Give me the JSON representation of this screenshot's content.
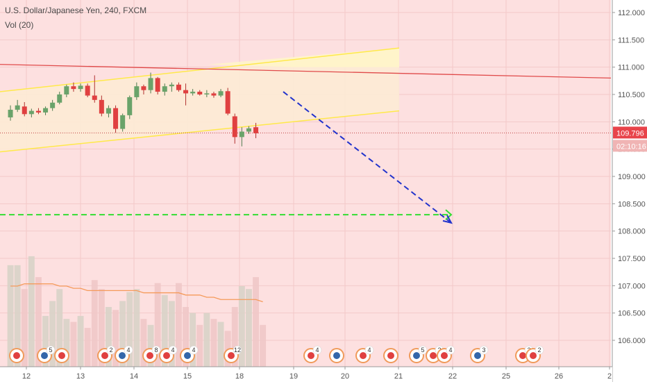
{
  "header": {
    "title": "U.S. Dollar/Japanese Yen, 240, FXCM",
    "indicator": "Vol (20)"
  },
  "colors": {
    "up": "#6aa36a",
    "down": "#e04040",
    "zone_fill": "#fde0e0",
    "channel_fill": "#fdebd5",
    "channel_line": "#ffe94a",
    "resistance_line": "#e04a4a",
    "projection_line": "#2233cc",
    "target_line": "#33dd33",
    "volume_up": "#d8d3c8",
    "volume_down": "#f0c8c8",
    "volume_ma": "#f59a5a",
    "price_label_bg": "#e8434a"
  },
  "current_price": {
    "value": "109.796",
    "countdown": "02:10:16"
  },
  "chart_data": {
    "type": "candlestick",
    "title": "U.S. Dollar/Japanese Yen, 240, FXCM",
    "y_ticks": [
      "112.000",
      "111.500",
      "111.000",
      "110.500",
      "110.000",
      "109.500",
      "109.000",
      "108.500",
      "108.000",
      "107.500",
      "107.000",
      "106.500",
      "106.000"
    ],
    "y_range": [
      105.5,
      112.2
    ],
    "x_ticks": [
      "12",
      "13",
      "14",
      "15",
      "18",
      "19",
      "20",
      "21",
      "22",
      "25",
      "26",
      "2"
    ],
    "candles": [
      {
        "o": 110.08,
        "h": 110.3,
        "l": 110.02,
        "c": 110.22
      },
      {
        "o": 110.22,
        "h": 110.4,
        "l": 110.18,
        "c": 110.3
      },
      {
        "o": 110.28,
        "h": 110.36,
        "l": 110.1,
        "c": 110.14
      },
      {
        "o": 110.14,
        "h": 110.24,
        "l": 110.08,
        "c": 110.2
      },
      {
        "o": 110.2,
        "h": 110.25,
        "l": 110.14,
        "c": 110.17
      },
      {
        "o": 110.17,
        "h": 110.28,
        "l": 110.12,
        "c": 110.25
      },
      {
        "o": 110.25,
        "h": 110.4,
        "l": 110.2,
        "c": 110.35
      },
      {
        "o": 110.35,
        "h": 110.55,
        "l": 110.32,
        "c": 110.5
      },
      {
        "o": 110.5,
        "h": 110.68,
        "l": 110.45,
        "c": 110.65
      },
      {
        "o": 110.65,
        "h": 110.72,
        "l": 110.55,
        "c": 110.6
      },
      {
        "o": 110.6,
        "h": 110.7,
        "l": 110.55,
        "c": 110.66
      },
      {
        "o": 110.66,
        "h": 110.7,
        "l": 110.45,
        "c": 110.48
      },
      {
        "o": 110.48,
        "h": 110.85,
        "l": 110.35,
        "c": 110.4
      },
      {
        "o": 110.4,
        "h": 110.48,
        "l": 110.1,
        "c": 110.15
      },
      {
        "o": 110.15,
        "h": 110.3,
        "l": 110.08,
        "c": 110.25
      },
      {
        "o": 110.25,
        "h": 110.3,
        "l": 109.8,
        "c": 109.87
      },
      {
        "o": 109.87,
        "h": 110.15,
        "l": 109.82,
        "c": 110.12
      },
      {
        "o": 110.12,
        "h": 110.48,
        "l": 110.05,
        "c": 110.45
      },
      {
        "o": 110.45,
        "h": 110.72,
        "l": 110.4,
        "c": 110.65
      },
      {
        "o": 110.65,
        "h": 110.68,
        "l": 110.5,
        "c": 110.58
      },
      {
        "o": 110.58,
        "h": 110.9,
        "l": 110.52,
        "c": 110.8
      },
      {
        "o": 110.8,
        "h": 110.82,
        "l": 110.5,
        "c": 110.55
      },
      {
        "o": 110.55,
        "h": 110.7,
        "l": 110.48,
        "c": 110.65
      },
      {
        "o": 110.65,
        "h": 110.72,
        "l": 110.55,
        "c": 110.68
      },
      {
        "o": 110.68,
        "h": 110.72,
        "l": 110.55,
        "c": 110.58
      },
      {
        "o": 110.58,
        "h": 110.7,
        "l": 110.3,
        "c": 110.52
      },
      {
        "o": 110.52,
        "h": 110.6,
        "l": 110.48,
        "c": 110.55
      },
      {
        "o": 110.55,
        "h": 110.58,
        "l": 110.48,
        "c": 110.5
      },
      {
        "o": 110.5,
        "h": 110.58,
        "l": 110.45,
        "c": 110.52
      },
      {
        "o": 110.52,
        "h": 110.55,
        "l": 110.44,
        "c": 110.48
      },
      {
        "o": 110.48,
        "h": 110.6,
        "l": 110.45,
        "c": 110.56
      },
      {
        "o": 110.56,
        "h": 110.62,
        "l": 110.12,
        "c": 110.15
      },
      {
        "o": 110.1,
        "h": 110.15,
        "l": 109.6,
        "c": 109.72
      },
      {
        "o": 109.72,
        "h": 109.9,
        "l": 109.55,
        "c": 109.82
      },
      {
        "o": 109.82,
        "h": 109.92,
        "l": 109.78,
        "c": 109.88
      },
      {
        "o": 109.9,
        "h": 109.98,
        "l": 109.7,
        "c": 109.79
      }
    ],
    "volume": [
      34,
      34,
      26,
      37,
      30,
      17,
      22,
      26,
      16,
      15,
      17,
      13,
      29,
      26,
      20,
      19,
      22,
      25,
      26,
      16,
      14,
      28,
      24,
      22,
      28,
      20,
      18,
      14,
      18,
      16,
      15,
      12,
      20,
      27,
      26,
      30,
      14
    ],
    "volume_ma": [
      36,
      36,
      37,
      37,
      37,
      37,
      37,
      36,
      36,
      35,
      35,
      34,
      34,
      34,
      34,
      34,
      34,
      34,
      34,
      33,
      33,
      33,
      33,
      33,
      33,
      32,
      32,
      32,
      31,
      31,
      30,
      30,
      30,
      30,
      30,
      30,
      29
    ],
    "annotations": {
      "resistance_line": {
        "from": [
          0,
          111.05
        ],
        "to": [
          "end",
          110.8
        ]
      },
      "channel_upper": {
        "from": [
          0,
          110.55
        ],
        "to": [
          41,
          111.35
        ]
      },
      "channel_lower": {
        "from": [
          0,
          109.45
        ],
        "to": [
          41,
          110.2
        ]
      },
      "projection": {
        "from": [
          31.5,
          110.55
        ],
        "to": [
          46.5,
          108.15
        ]
      },
      "target_level": 108.3
    },
    "events": [
      {
        "slot": 1,
        "count": ""
      },
      {
        "slot": 3.5,
        "count": "5"
      },
      {
        "slot": 4.5,
        "count": ""
      },
      {
        "slot": 8,
        "count": "2"
      },
      {
        "slot": 9,
        "count": "4"
      },
      {
        "slot": 11,
        "count": "8"
      },
      {
        "slot": 12,
        "count": "4"
      },
      {
        "slot": 15,
        "count": "4"
      },
      {
        "slot": 17,
        "count": "12"
      },
      {
        "slot": 24,
        "count": "4"
      },
      {
        "slot": 26,
        "count": ""
      },
      {
        "slot": 28,
        "count": "4"
      },
      {
        "slot": 29,
        "count": ""
      },
      {
        "slot": 31,
        "count": "5"
      },
      {
        "slot": 32,
        "count": "2"
      },
      {
        "slot": 33.5,
        "count": "4"
      },
      {
        "slot": 36.5,
        "count": "3"
      },
      {
        "slot": 40,
        "count": "2"
      },
      {
        "slot": 41,
        "count": "2"
      }
    ]
  }
}
